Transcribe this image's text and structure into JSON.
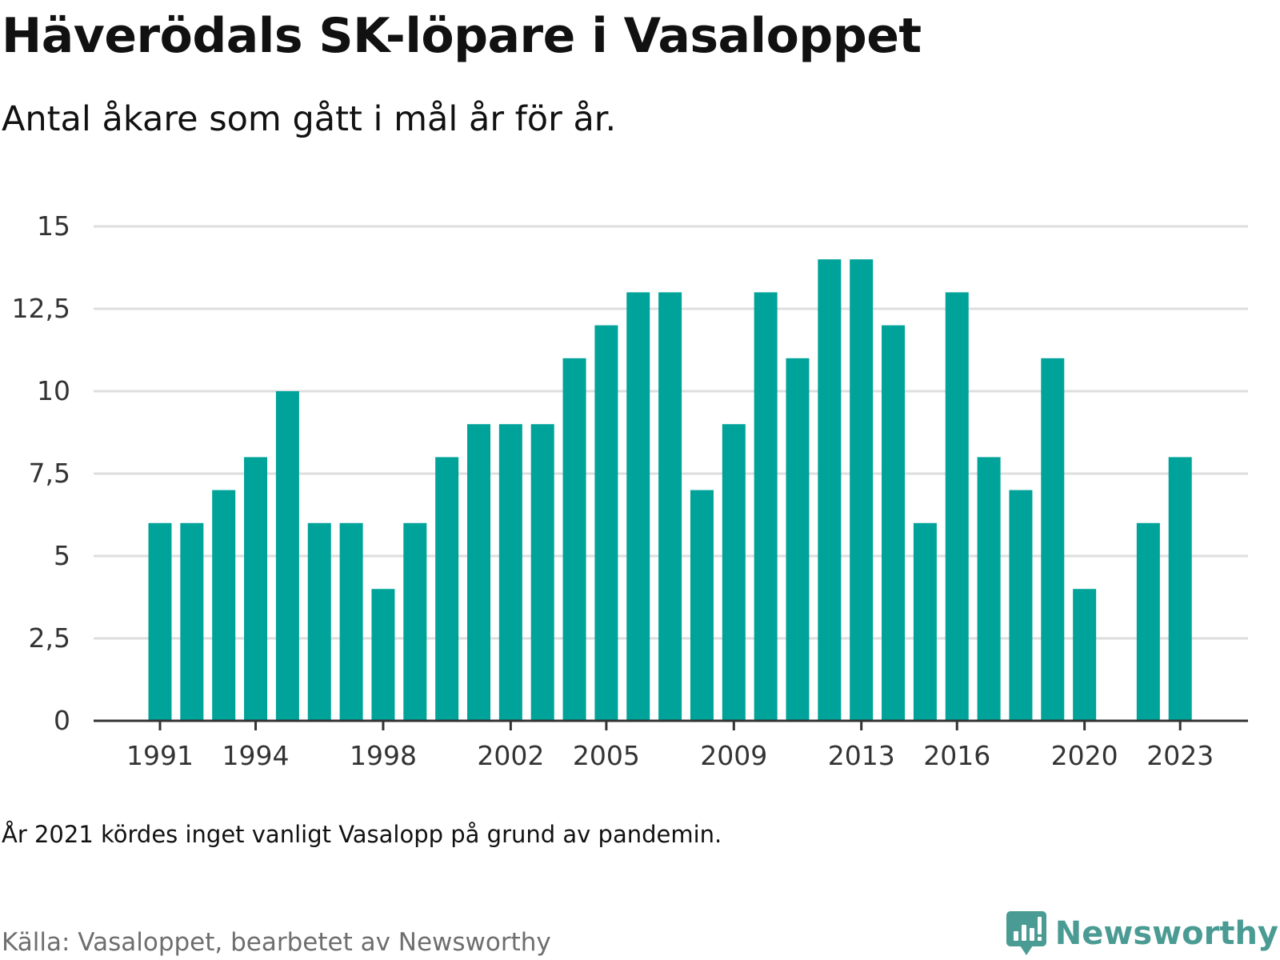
{
  "header": {
    "title": "Häverödals SK-löpare i Vasaloppet",
    "subtitle": "Antal åkare som gått i mål år för år."
  },
  "footer": {
    "note": "År 2021 kördes inget vanligt Vasalopp på grund av pandemin.",
    "source": "Källa: Vasaloppet, bearbetet av Newsworthy",
    "brand": "Newsworthy",
    "brand_icon": "newsworthy-logo-icon"
  },
  "colors": {
    "bar": "#00a39a",
    "grid": "#dedede",
    "axis": "#333333",
    "brand": "#4a9b93"
  },
  "chart_data": {
    "type": "bar",
    "x": [
      1991,
      1992,
      1993,
      1994,
      1995,
      1996,
      1997,
      1998,
      1999,
      2000,
      2001,
      2002,
      2003,
      2004,
      2005,
      2006,
      2007,
      2008,
      2009,
      2010,
      2011,
      2012,
      2013,
      2014,
      2015,
      2016,
      2017,
      2018,
      2019,
      2020,
      2021,
      2022,
      2023
    ],
    "values": [
      6,
      6,
      7,
      8,
      10,
      6,
      6,
      4,
      6,
      8,
      9,
      9,
      9,
      11,
      12,
      13,
      13,
      7,
      9,
      13,
      11,
      14,
      14,
      12,
      6,
      13,
      8,
      7,
      11,
      4,
      null,
      6,
      8
    ],
    "x_ticks": [
      1991,
      1994,
      1998,
      2002,
      2005,
      2009,
      2013,
      2016,
      2020,
      2023
    ],
    "y_ticks": [
      0,
      2.5,
      5,
      7.5,
      10,
      12.5,
      15
    ],
    "y_tick_labels": [
      "0",
      "2,5",
      "5",
      "7,5",
      "10",
      "12,5",
      "15"
    ],
    "ylim": [
      0,
      15
    ],
    "grid": true,
    "legend": "none"
  }
}
